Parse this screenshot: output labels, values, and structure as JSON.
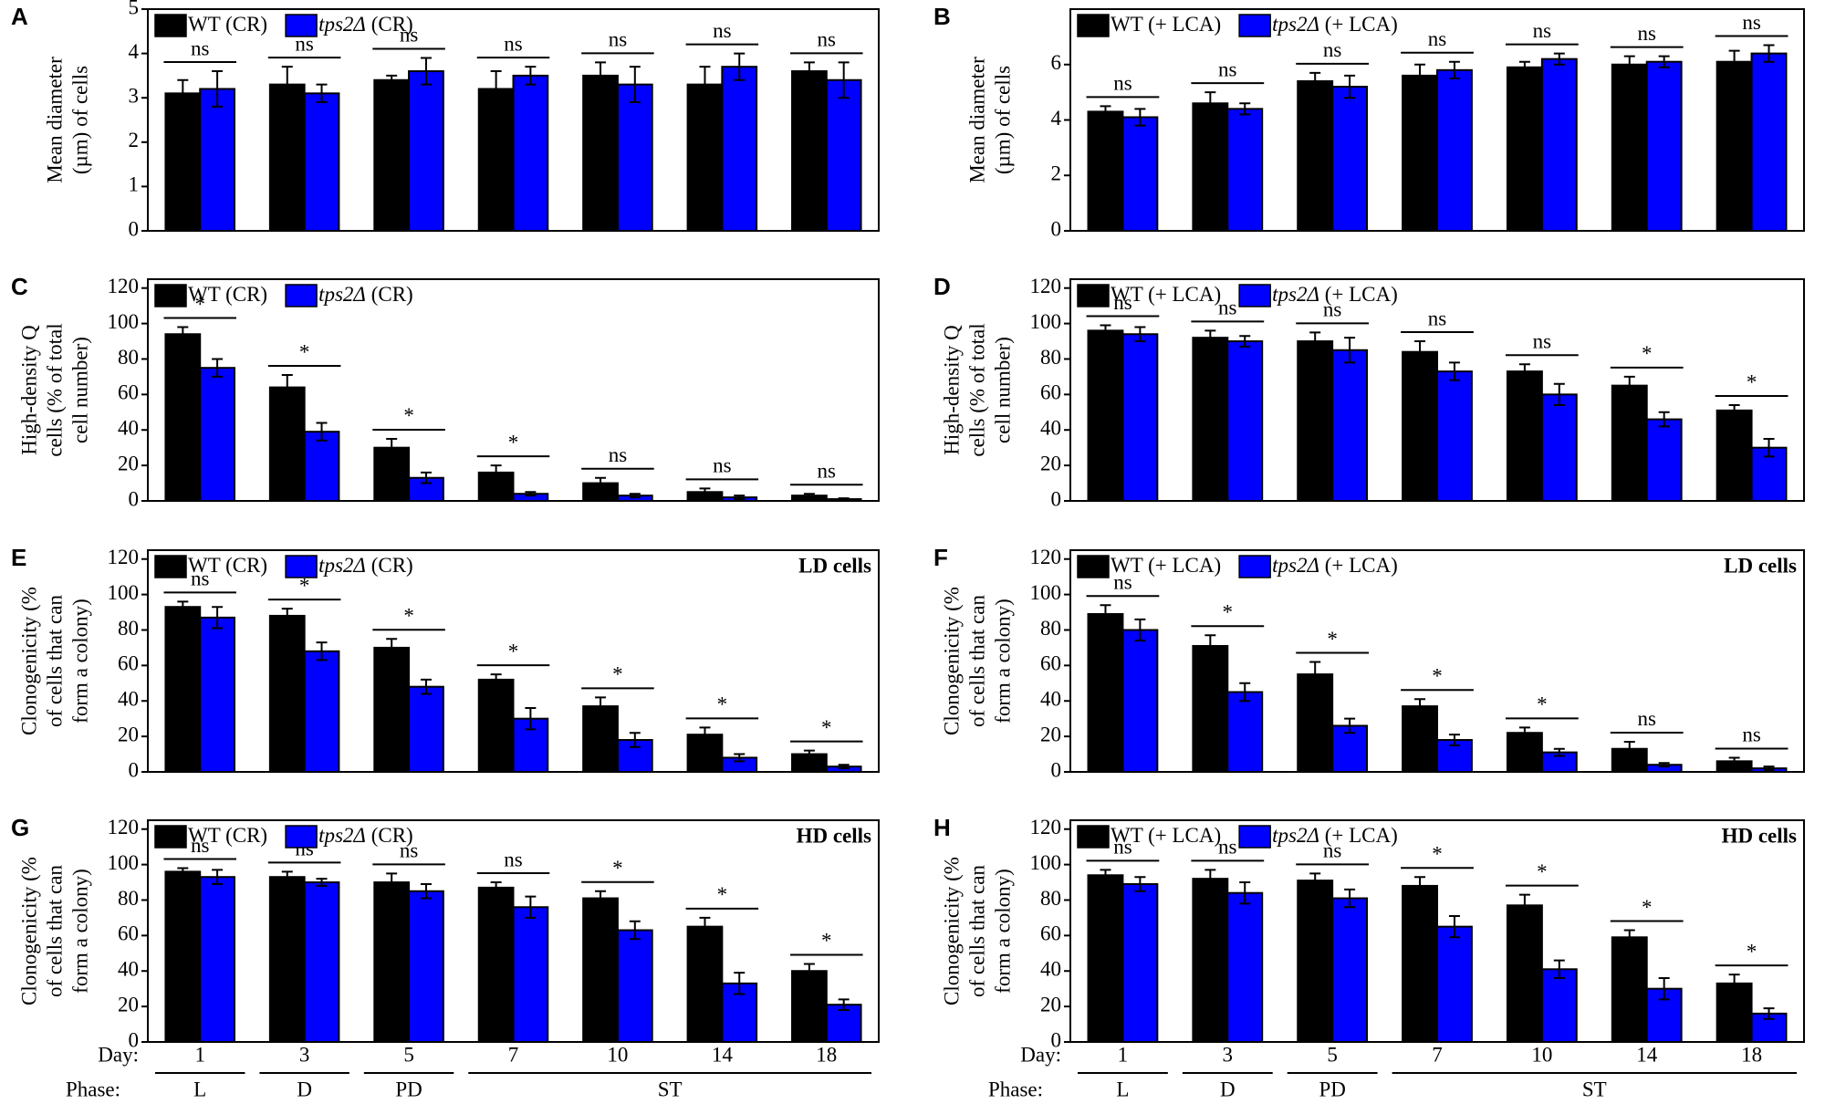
{
  "chart_data": [
    {
      "type": "bar",
      "panel": "A",
      "ylabel": [
        "Mean diameter",
        "(µm) of cells"
      ],
      "ylim": [
        0,
        5
      ],
      "yticks": [
        0,
        1,
        2,
        3,
        4,
        5
      ],
      "series": [
        {
          "name": "WT (CR)",
          "color": "#000000",
          "italic": false,
          "values": [
            3.1,
            3.3,
            3.4,
            3.2,
            3.5,
            3.3,
            3.6
          ],
          "errors": [
            0.3,
            0.4,
            0.1,
            0.4,
            0.3,
            0.4,
            0.2
          ]
        },
        {
          "name": "tps2Δ (CR)",
          "color": "#0000ff",
          "italic": true,
          "values": [
            3.2,
            3.1,
            3.6,
            3.5,
            3.3,
            3.7,
            3.4
          ],
          "errors": [
            0.4,
            0.2,
            0.3,
            0.2,
            0.4,
            0.3,
            0.4
          ]
        }
      ],
      "annotations": [
        "ns",
        "ns",
        "ns",
        "ns",
        "ns",
        "ns",
        "ns"
      ]
    },
    {
      "type": "bar",
      "panel": "B",
      "ylabel": [
        "Mean diameter",
        "(µm) of cells"
      ],
      "ylim": [
        0,
        8
      ],
      "yticks": [
        0,
        2,
        4,
        6
      ],
      "series": [
        {
          "name": "WT (+ LCA)",
          "color": "#000000",
          "italic": false,
          "values": [
            4.3,
            4.6,
            5.4,
            5.6,
            5.9,
            6.0,
            6.1
          ],
          "errors": [
            0.2,
            0.4,
            0.3,
            0.4,
            0.2,
            0.3,
            0.4
          ]
        },
        {
          "name": "tps2Δ (+ LCA)",
          "color": "#0000ff",
          "italic": true,
          "values": [
            4.1,
            4.4,
            5.2,
            5.8,
            6.2,
            6.1,
            6.4
          ],
          "errors": [
            0.3,
            0.2,
            0.4,
            0.3,
            0.2,
            0.2,
            0.3
          ]
        }
      ],
      "annotations": [
        "ns",
        "ns",
        "ns",
        "ns",
        "ns",
        "ns",
        "ns"
      ]
    },
    {
      "type": "bar",
      "panel": "C",
      "ylabel": [
        "High-density Q",
        "cells  (% of total",
        "cell number)"
      ],
      "ylim": [
        0,
        125
      ],
      "yticks": [
        0,
        20,
        40,
        60,
        80,
        100,
        120
      ],
      "series": [
        {
          "name": "WT (CR)",
          "color": "#000000",
          "italic": false,
          "values": [
            94,
            64,
            30,
            16,
            10,
            5,
            3
          ],
          "errors": [
            4,
            7,
            5,
            4,
            3,
            2,
            1
          ]
        },
        {
          "name": "tps2Δ (CR)",
          "color": "#0000ff",
          "italic": true,
          "values": [
            75,
            39,
            13,
            4,
            3,
            2,
            1
          ],
          "errors": [
            5,
            5,
            3,
            1,
            1,
            1,
            0.5
          ]
        }
      ],
      "annotations": [
        "*",
        "*",
        "*",
        "*",
        "ns",
        "ns",
        "ns"
      ]
    },
    {
      "type": "bar",
      "panel": "D",
      "ylabel": [
        "High-density Q",
        "cells  (% of total",
        "cell number)"
      ],
      "ylim": [
        0,
        125
      ],
      "yticks": [
        0,
        20,
        40,
        60,
        80,
        100,
        120
      ],
      "series": [
        {
          "name": "WT (+ LCA)",
          "color": "#000000",
          "italic": false,
          "values": [
            96,
            92,
            90,
            84,
            73,
            65,
            51
          ],
          "errors": [
            3,
            4,
            5,
            6,
            4,
            5,
            3
          ]
        },
        {
          "name": "tps2Δ (+ LCA)",
          "color": "#0000ff",
          "italic": true,
          "values": [
            94,
            90,
            85,
            73,
            60,
            46,
            30
          ],
          "errors": [
            4,
            3,
            7,
            5,
            6,
            4,
            5
          ]
        }
      ],
      "annotations": [
        "ns",
        "ns",
        "ns",
        "ns",
        "ns",
        "*",
        "*"
      ]
    },
    {
      "type": "bar",
      "panel": "E",
      "note": "LD cells",
      "ylabel": [
        "Clonogenicity (%",
        "of cells that can",
        "form a colony)"
      ],
      "ylim": [
        0,
        125
      ],
      "yticks": [
        0,
        20,
        40,
        60,
        80,
        100,
        120
      ],
      "series": [
        {
          "name": "WT (CR)",
          "color": "#000000",
          "italic": false,
          "values": [
            93,
            88,
            70,
            52,
            37,
            21,
            10
          ],
          "errors": [
            3,
            4,
            5,
            3,
            5,
            4,
            2
          ]
        },
        {
          "name": "tps2Δ (CR)",
          "color": "#0000ff",
          "italic": true,
          "values": [
            87,
            68,
            48,
            30,
            18,
            8,
            3
          ],
          "errors": [
            6,
            5,
            4,
            6,
            4,
            2,
            1
          ]
        }
      ],
      "annotations": [
        "ns",
        "*",
        "*",
        "*",
        "*",
        "*",
        "*"
      ]
    },
    {
      "type": "bar",
      "panel": "F",
      "note": "LD cells",
      "ylabel": [
        "Clonogenicity (%",
        "of cells that can",
        "form a colony)"
      ],
      "ylim": [
        0,
        125
      ],
      "yticks": [
        0,
        20,
        40,
        60,
        80,
        100,
        120
      ],
      "series": [
        {
          "name": "WT (+ LCA)",
          "color": "#000000",
          "italic": false,
          "values": [
            89,
            71,
            55,
            37,
            22,
            13,
            6
          ],
          "errors": [
            5,
            6,
            7,
            4,
            3,
            4,
            2
          ]
        },
        {
          "name": "tps2Δ (+ LCA)",
          "color": "#0000ff",
          "italic": true,
          "values": [
            80,
            45,
            26,
            18,
            11,
            4,
            2
          ],
          "errors": [
            6,
            5,
            4,
            3,
            2,
            1,
            1
          ]
        }
      ],
      "annotations": [
        "ns",
        "*",
        "*",
        "*",
        "*",
        "ns",
        "ns"
      ]
    },
    {
      "type": "bar",
      "panel": "G",
      "note": "HD cells",
      "ylabel": [
        "Clonogenicity (%",
        "of cells that can",
        "form a colony)"
      ],
      "ylim": [
        0,
        125
      ],
      "yticks": [
        0,
        20,
        40,
        60,
        80,
        100,
        120
      ],
      "series": [
        {
          "name": "WT (CR)",
          "color": "#000000",
          "italic": false,
          "values": [
            96,
            93,
            90,
            87,
            81,
            65,
            40
          ],
          "errors": [
            2,
            3,
            5,
            3,
            4,
            5,
            4
          ]
        },
        {
          "name": "tps2Δ (CR)",
          "color": "#0000ff",
          "italic": true,
          "values": [
            93,
            90,
            85,
            76,
            63,
            33,
            21
          ],
          "errors": [
            4,
            2,
            4,
            6,
            5,
            6,
            3
          ]
        }
      ],
      "annotations": [
        "ns",
        "ns",
        "ns",
        "ns",
        "*",
        "*",
        "*"
      ],
      "day_label": "Day:",
      "categories": [
        "1",
        "3",
        "5",
        "7",
        "10",
        "14",
        "18"
      ],
      "phase_label": "Phase:",
      "phases": [
        "L",
        "D",
        "PD",
        "ST",
        null,
        null,
        null
      ]
    },
    {
      "type": "bar",
      "panel": "H",
      "note": "HD cells",
      "ylabel": [
        "Clonogenicity (%",
        "of cells that can",
        "form a colony)"
      ],
      "ylim": [
        0,
        125
      ],
      "yticks": [
        0,
        20,
        40,
        60,
        80,
        100,
        120
      ],
      "series": [
        {
          "name": "WT (+ LCA)",
          "color": "#000000",
          "italic": false,
          "values": [
            94,
            92,
            91,
            88,
            77,
            59,
            33
          ],
          "errors": [
            3,
            5,
            4,
            5,
            6,
            4,
            5
          ]
        },
        {
          "name": "tps2Δ (+ LCA)",
          "color": "#0000ff",
          "italic": true,
          "values": [
            89,
            84,
            81,
            65,
            41,
            30,
            16
          ],
          "errors": [
            4,
            6,
            5,
            6,
            5,
            6,
            3
          ]
        }
      ],
      "annotations": [
        "ns",
        "ns",
        "ns",
        "*",
        "*",
        "*",
        "*"
      ],
      "day_label": "Day:",
      "categories": [
        "1",
        "3",
        "5",
        "7",
        "10",
        "14",
        "18"
      ],
      "phase_label": "Phase:",
      "phases": [
        "L",
        "D",
        "PD",
        "ST",
        null,
        null,
        null
      ]
    }
  ]
}
